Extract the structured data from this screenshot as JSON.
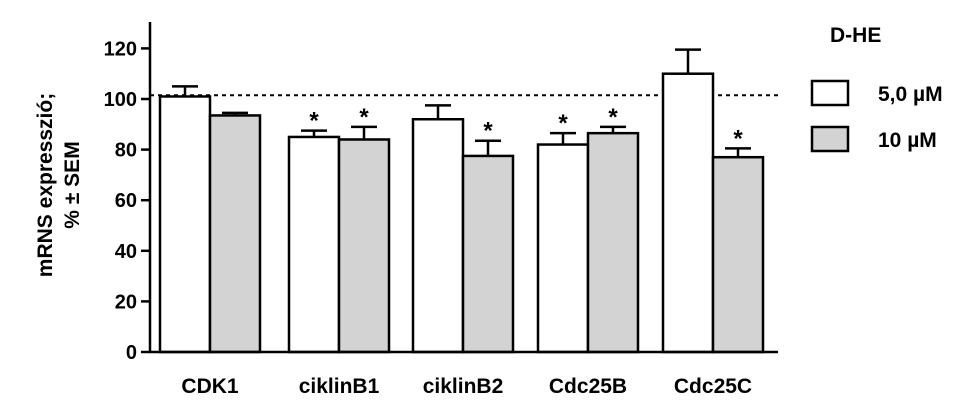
{
  "chart_data": {
    "type": "bar",
    "title": "",
    "ylabel_lines": [
      "mRNS expresszió;",
      "% ± SEM"
    ],
    "xlabel": "",
    "ylim": [
      0,
      130
    ],
    "yticks": [
      "0",
      "20",
      "40",
      "60",
      "80",
      "100",
      "120"
    ],
    "reference_line": 101.5,
    "categories": [
      "CDK1",
      "ciklinB1",
      "ciklinB2",
      "Cdc25B",
      "Cdc25C"
    ],
    "legend_title": "D-HE",
    "legend_position": "right",
    "series": [
      {
        "name": "5,0 µM",
        "color": "#ffffff",
        "values": [
          101,
          85,
          92,
          82,
          110
        ],
        "errors": [
          4,
          2.5,
          5.5,
          4.5,
          9.5
        ],
        "significance": [
          "",
          "*",
          "",
          "*",
          ""
        ]
      },
      {
        "name": "10 µM",
        "color": "#d3d3d3",
        "values": [
          93.5,
          84,
          77.5,
          86.5,
          77
        ],
        "errors": [
          1,
          5,
          6,
          2.5,
          3.5
        ],
        "significance": [
          "",
          "*",
          "*",
          "*",
          "*"
        ]
      }
    ]
  }
}
